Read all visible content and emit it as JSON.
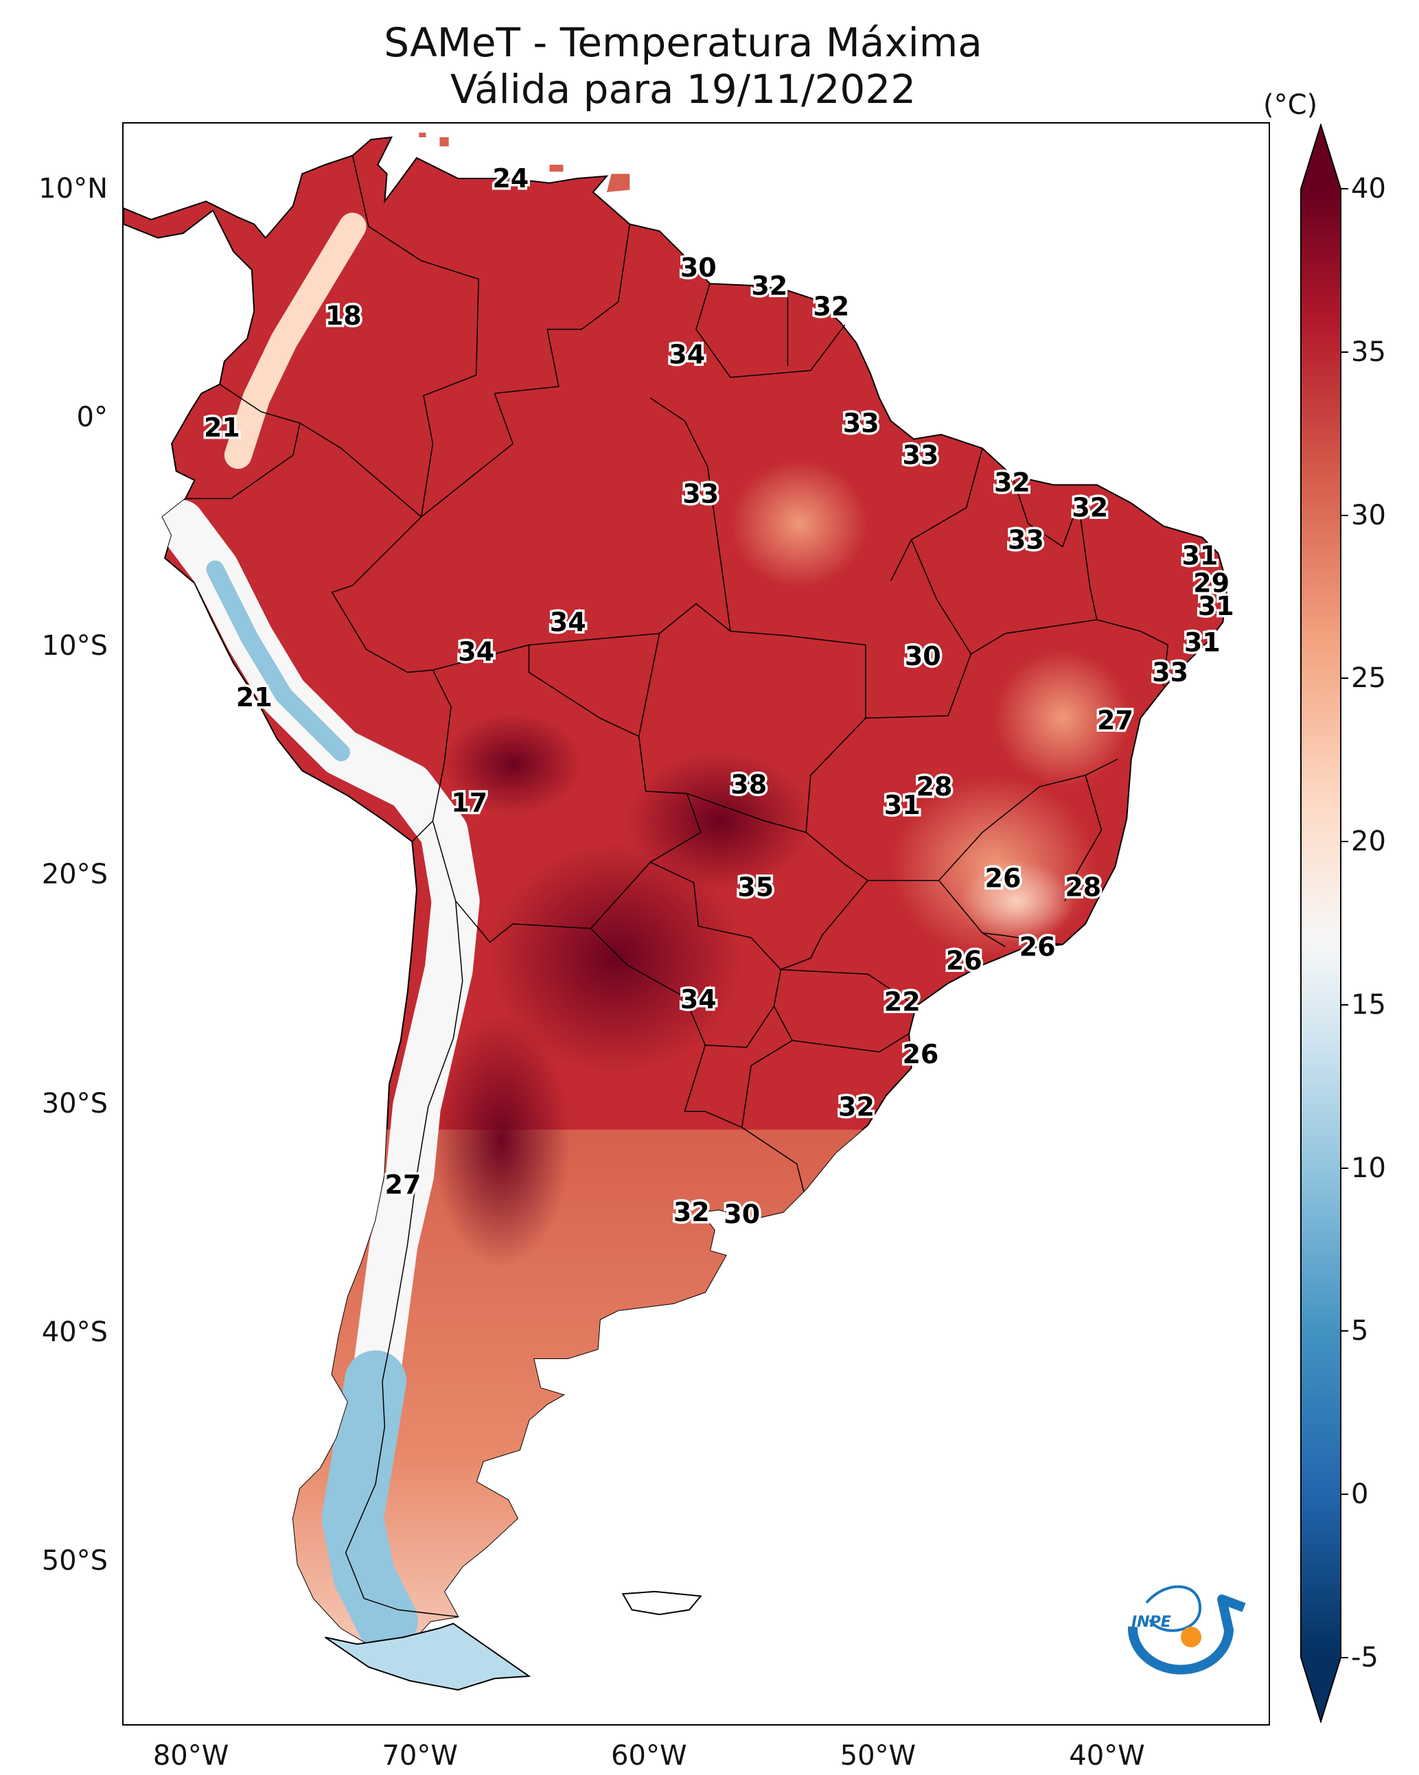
{
  "title": {
    "line1": "SAMeT - Temperatura Máxima",
    "line2": "Válida para 19/11/2022"
  },
  "map": {
    "lon_range": [
      -83,
      -33
    ],
    "lat_range": [
      -57,
      13
    ],
    "lat_ticks": [
      {
        "value": 10,
        "label": "10°N"
      },
      {
        "value": 0,
        "label": "0°"
      },
      {
        "value": -10,
        "label": "10°S"
      },
      {
        "value": -20,
        "label": "20°S"
      },
      {
        "value": -30,
        "label": "30°S"
      },
      {
        "value": -40,
        "label": "40°S"
      },
      {
        "value": -50,
        "label": "50°S"
      }
    ],
    "lon_ticks": [
      {
        "value": -80,
        "label": "80°W"
      },
      {
        "value": -70,
        "label": "70°W"
      },
      {
        "value": -60,
        "label": "60°W"
      },
      {
        "value": -50,
        "label": "50°W"
      },
      {
        "value": -40,
        "label": "40°W"
      }
    ],
    "temperature_labels": [
      {
        "lon": -66.1,
        "lat": 10.6,
        "text": "24"
      },
      {
        "lon": -73.4,
        "lat": 4.6,
        "text": "18"
      },
      {
        "lon": -57.9,
        "lat": 6.7,
        "text": "30"
      },
      {
        "lon": -54.8,
        "lat": 5.9,
        "text": "32"
      },
      {
        "lon": -52.1,
        "lat": 5.0,
        "text": "32"
      },
      {
        "lon": -58.4,
        "lat": 2.9,
        "text": "34"
      },
      {
        "lon": -78.7,
        "lat": -0.3,
        "text": "21"
      },
      {
        "lon": -50.8,
        "lat": -0.1,
        "text": "33"
      },
      {
        "lon": -48.2,
        "lat": -1.5,
        "text": "33"
      },
      {
        "lon": -57.8,
        "lat": -3.2,
        "text": "33"
      },
      {
        "lon": -44.2,
        "lat": -2.7,
        "text": "32"
      },
      {
        "lon": -40.8,
        "lat": -3.8,
        "text": "32"
      },
      {
        "lon": -43.6,
        "lat": -5.2,
        "text": "33"
      },
      {
        "lon": -36.0,
        "lat": -5.9,
        "text": "31"
      },
      {
        "lon": -35.5,
        "lat": -7.1,
        "text": "29"
      },
      {
        "lon": -35.3,
        "lat": -8.1,
        "text": "31"
      },
      {
        "lon": -35.9,
        "lat": -9.7,
        "text": "31"
      },
      {
        "lon": -37.3,
        "lat": -11.0,
        "text": "33"
      },
      {
        "lon": -63.6,
        "lat": -8.8,
        "text": "34"
      },
      {
        "lon": -67.6,
        "lat": -10.1,
        "text": "34"
      },
      {
        "lon": -48.1,
        "lat": -10.3,
        "text": "30"
      },
      {
        "lon": -77.3,
        "lat": -12.1,
        "text": "21"
      },
      {
        "lon": -39.7,
        "lat": -13.1,
        "text": "27"
      },
      {
        "lon": -55.7,
        "lat": -15.9,
        "text": "38"
      },
      {
        "lon": -47.6,
        "lat": -16.0,
        "text": "28"
      },
      {
        "lon": -49.0,
        "lat": -16.8,
        "text": "31"
      },
      {
        "lon": -67.9,
        "lat": -16.7,
        "text": "17"
      },
      {
        "lon": -44.6,
        "lat": -20.0,
        "text": "26"
      },
      {
        "lon": -41.1,
        "lat": -20.4,
        "text": "28"
      },
      {
        "lon": -55.4,
        "lat": -20.4,
        "text": "35"
      },
      {
        "lon": -43.1,
        "lat": -23.0,
        "text": "26"
      },
      {
        "lon": -46.3,
        "lat": -23.6,
        "text": "26"
      },
      {
        "lon": -49.0,
        "lat": -25.4,
        "text": "22"
      },
      {
        "lon": -57.9,
        "lat": -25.3,
        "text": "34"
      },
      {
        "lon": -48.2,
        "lat": -27.7,
        "text": "26"
      },
      {
        "lon": -51.0,
        "lat": -30.0,
        "text": "32"
      },
      {
        "lon": -70.8,
        "lat": -33.4,
        "text": "27"
      },
      {
        "lon": -58.2,
        "lat": -34.6,
        "text": "32"
      },
      {
        "lon": -56.0,
        "lat": -34.7,
        "text": "30"
      }
    ]
  },
  "colorbar": {
    "unit": "(°C)",
    "min": -7,
    "max": 42,
    "ticks": [
      {
        "value": 40,
        "label": "40"
      },
      {
        "value": 35,
        "label": "35"
      },
      {
        "value": 30,
        "label": "30"
      },
      {
        "value": 25,
        "label": "25"
      },
      {
        "value": 20,
        "label": "20"
      },
      {
        "value": 15,
        "label": "15"
      },
      {
        "value": 10,
        "label": "10"
      },
      {
        "value": 5,
        "label": "5"
      },
      {
        "value": 0,
        "label": "0"
      },
      {
        "value": -5,
        "label": "-5"
      }
    ],
    "color_stops": [
      {
        "value": -5,
        "color": "#053061"
      },
      {
        "value": 0,
        "color": "#2166ac"
      },
      {
        "value": 5,
        "color": "#4393c3"
      },
      {
        "value": 10,
        "color": "#92c5de"
      },
      {
        "value": 14,
        "color": "#d1e5f0"
      },
      {
        "value": 17,
        "color": "#f7f7f7"
      },
      {
        "value": 21,
        "color": "#fddbc7"
      },
      {
        "value": 26,
        "color": "#f4a582"
      },
      {
        "value": 31,
        "color": "#d6604d"
      },
      {
        "value": 36,
        "color": "#b2182b"
      },
      {
        "value": 40,
        "color": "#67001f"
      }
    ]
  },
  "logo": {
    "text": "INPE",
    "colors": {
      "arc": "#1b75bb",
      "dot": "#f7941d"
    }
  }
}
